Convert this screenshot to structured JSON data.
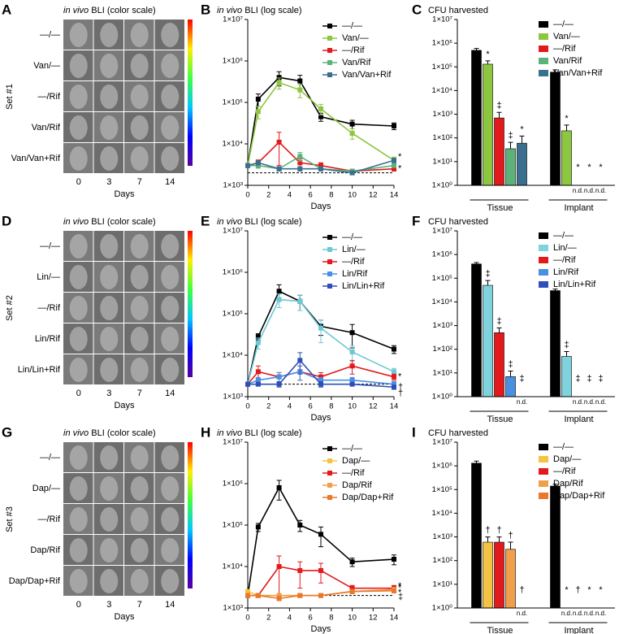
{
  "image_panels": [
    {
      "letter": "A",
      "title_em": "in vivo",
      "title": "BLI (color scale)",
      "set": "Set #1",
      "rows": [
        "—/—",
        "Van/—",
        "—/Rif",
        "Van/Rif",
        "Van/Van+Rif"
      ],
      "days": [
        "0",
        "3",
        "7",
        "14"
      ],
      "xlabel": "Days"
    },
    {
      "letter": "D",
      "title_em": "in vivo",
      "title": "BLI (color scale)",
      "set": "Set #2",
      "rows": [
        "—/—",
        "Lin/—",
        "—/Rif",
        "Lin/Rif",
        "Lin/Lin+Rif"
      ],
      "days": [
        "0",
        "3",
        "7",
        "14"
      ],
      "xlabel": "Days"
    },
    {
      "letter": "G",
      "title_em": "in vivo",
      "title": "BLI (color scale)",
      "set": "Set #3",
      "rows": [
        "—/—",
        "Dap/—",
        "—/Rif",
        "Dap/Rif",
        "Dap/Dap+Rif"
      ],
      "days": [
        "0",
        "3",
        "7",
        "14"
      ],
      "xlabel": "Days"
    }
  ],
  "chart_data": [
    {
      "type": "line",
      "letter": "B",
      "title_em": "in vivo",
      "title": "BLI (log scale)",
      "xlabel": "Days",
      "log_y": true,
      "x": [
        0,
        1,
        3,
        5,
        7,
        10,
        14
      ],
      "xlim": [
        0,
        14
      ],
      "xticks": [
        0,
        2,
        4,
        6,
        8,
        10,
        12,
        14
      ],
      "ylim": [
        1000,
        10000000
      ],
      "yticks": [
        {
          "value": 1000,
          "label": "1×10³"
        },
        {
          "value": 10000,
          "label": "1×10⁴"
        },
        {
          "value": 100000,
          "label": "1×10⁵"
        },
        {
          "value": 1000000,
          "label": "1×10⁶"
        },
        {
          "value": 10000000,
          "label": "1×10⁷"
        }
      ],
      "reference_line": 2000,
      "series": [
        {
          "name": "—/—",
          "color": "#000000",
          "values": [
            3000,
            120000,
            400000,
            330000,
            45000,
            30000,
            27000
          ],
          "errors": [
            300,
            40000,
            150000,
            120000,
            10000,
            7000,
            5000
          ]
        },
        {
          "name": "Van/—",
          "color": "#8dc63f",
          "values": [
            3000,
            60000,
            300000,
            200000,
            70000,
            18000,
            4000
          ],
          "errors": [
            300,
            20000,
            90000,
            70000,
            20000,
            5000,
            800
          ],
          "end_mark": "*"
        },
        {
          "name": "—/Rif",
          "color": "#e31a1c",
          "values": [
            3000,
            3500,
            11000,
            3500,
            3000,
            2200,
            2500
          ],
          "errors": [
            300,
            600,
            8000,
            800,
            500,
            200,
            300
          ],
          "end_mark": "*"
        },
        {
          "name": "Van/Rif",
          "color": "#5bb37a",
          "values": [
            3000,
            3000,
            2500,
            5000,
            2500,
            2200,
            3000
          ],
          "errors": [
            300,
            400,
            300,
            1200,
            300,
            200,
            300
          ]
        },
        {
          "name": "Van/Van+Rif",
          "color": "#3a6f8f",
          "values": [
            3000,
            3500,
            2500,
            2500,
            2500,
            2000,
            4000
          ],
          "errors": [
            300,
            400,
            300,
            300,
            300,
            200,
            500
          ]
        }
      ]
    },
    {
      "type": "bar",
      "letter": "C",
      "title": "CFU harvested",
      "log_y": true,
      "categories": [
        "Tissue",
        "Implant"
      ],
      "nd_label": "n.d.",
      "ylim": [
        1,
        10000000
      ],
      "yticks": [
        {
          "value": 1,
          "label": "1×10⁰"
        },
        {
          "value": 10,
          "label": "1×10¹"
        },
        {
          "value": 100,
          "label": "1×10²"
        },
        {
          "value": 1000,
          "label": "1×10³"
        },
        {
          "value": 10000,
          "label": "1×10⁴"
        },
        {
          "value": 100000,
          "label": "1×10⁵"
        },
        {
          "value": 1000000,
          "label": "1×10⁶"
        },
        {
          "value": 10000000,
          "label": "1×10⁷"
        }
      ],
      "series": [
        {
          "name": "—/—",
          "color": "#000000",
          "values": [
            500000,
            60000
          ],
          "errors": [
            100000,
            15000
          ],
          "marks": [
            null,
            null
          ]
        },
        {
          "name": "Van/—",
          "color": "#8dc63f",
          "values": [
            130000,
            200
          ],
          "errors": [
            50000,
            150
          ],
          "marks": [
            "*",
            "*"
          ]
        },
        {
          "name": "—/Rif",
          "color": "#e31a1c",
          "values": [
            700,
            null
          ],
          "errors": [
            500,
            null
          ],
          "marks": [
            "‡",
            "*"
          ]
        },
        {
          "name": "Van/Rif",
          "color": "#5bb37a",
          "values": [
            35,
            null
          ],
          "errors": [
            30,
            null
          ],
          "marks": [
            "‡",
            "*"
          ]
        },
        {
          "name": "Van/Van+Rif",
          "color": "#3a6f8f",
          "values": [
            60,
            null
          ],
          "errors": [
            60,
            null
          ],
          "marks": [
            "*",
            "*"
          ]
        }
      ]
    },
    {
      "type": "line",
      "letter": "E",
      "title_em": "in vivo",
      "title": "BLI (log scale)",
      "xlabel": "Days",
      "log_y": true,
      "x": [
        0,
        1,
        3,
        5,
        7,
        10,
        14
      ],
      "xlim": [
        0,
        14
      ],
      "xticks": [
        0,
        2,
        4,
        6,
        8,
        10,
        12,
        14
      ],
      "ylim": [
        1000,
        10000000
      ],
      "yticks": [
        {
          "value": 1000,
          "label": "1×10³"
        },
        {
          "value": 10000,
          "label": "1×10⁴"
        },
        {
          "value": 100000,
          "label": "1×10⁵"
        },
        {
          "value": 1000000,
          "label": "1×10⁶"
        },
        {
          "value": 10000000,
          "label": "1×10⁷"
        }
      ],
      "reference_line": 2000,
      "series": [
        {
          "name": "—/—",
          "color": "#000000",
          "values": [
            2000,
            28000,
            350000,
            200000,
            50000,
            35000,
            14000
          ],
          "errors": [
            200,
            5000,
            150000,
            80000,
            20000,
            20000,
            3000
          ]
        },
        {
          "name": "Lin/—",
          "color": "#6cc8d4",
          "values": [
            2000,
            20000,
            220000,
            200000,
            45000,
            12000,
            4000
          ],
          "errors": [
            200,
            6000,
            80000,
            80000,
            25000,
            5000,
            800
          ]
        },
        {
          "name": "—/Rif",
          "color": "#e31a1c",
          "values": [
            2000,
            4000,
            3000,
            4000,
            3000,
            5500,
            3000
          ],
          "errors": [
            200,
            1500,
            800,
            1500,
            800,
            2000,
            500
          ],
          "end_mark": "*"
        },
        {
          "name": "Lin/Rif",
          "color": "#4a90e2",
          "values": [
            2000,
            2500,
            3000,
            4000,
            2500,
            2500,
            2000
          ],
          "errors": [
            200,
            400,
            800,
            1500,
            400,
            400,
            300
          ],
          "end_mark": "†"
        },
        {
          "name": "Lin/Lin+Rif",
          "color": "#2e4fb8",
          "values": [
            2000,
            2000,
            2000,
            7500,
            2000,
            2000,
            1700
          ],
          "errors": [
            200,
            200,
            300,
            4000,
            300,
            200,
            200
          ],
          "end_mark": "†"
        }
      ]
    },
    {
      "type": "bar",
      "letter": "F",
      "title": "CFU harvested",
      "log_y": true,
      "categories": [
        "Tissue",
        "Implant"
      ],
      "nd_label": "n.d.",
      "ylim": [
        1,
        10000000
      ],
      "yticks": [
        {
          "value": 1,
          "label": "1×10⁰"
        },
        {
          "value": 10,
          "label": "1×10¹"
        },
        {
          "value": 100,
          "label": "1×10²"
        },
        {
          "value": 1000,
          "label": "1×10³"
        },
        {
          "value": 10000,
          "label": "1×10⁴"
        },
        {
          "value": 100000,
          "label": "1×10⁵"
        },
        {
          "value": 1000000,
          "label": "1×10⁶"
        },
        {
          "value": 10000000,
          "label": "1×10⁷"
        }
      ],
      "series": [
        {
          "name": "—/—",
          "color": "#000000",
          "values": [
            400000,
            30000
          ],
          "errors": [
            60000,
            5000
          ],
          "marks": [
            null,
            null
          ]
        },
        {
          "name": "Lin/—",
          "color": "#7fd3dc",
          "values": [
            50000,
            50
          ],
          "errors": [
            30000,
            30
          ],
          "marks": [
            "‡",
            "‡"
          ]
        },
        {
          "name": "—/Rif",
          "color": "#e31a1c",
          "values": [
            500,
            null
          ],
          "errors": [
            300,
            null
          ],
          "marks": [
            "‡",
            "‡"
          ]
        },
        {
          "name": "Lin/Rif",
          "color": "#4a8fe0",
          "values": [
            7,
            null
          ],
          "errors": [
            5,
            null
          ],
          "marks": [
            "‡",
            "‡"
          ]
        },
        {
          "name": "Lin/Lin+Rif",
          "color": "#2e4fb8",
          "values": [
            null,
            null
          ],
          "errors": [
            null,
            null
          ],
          "marks": [
            "‡",
            "‡"
          ]
        }
      ]
    },
    {
      "type": "line",
      "letter": "H",
      "title_em": "in vivo",
      "title": "BLI (log scale)",
      "xlabel": "Days",
      "log_y": true,
      "x": [
        0,
        1,
        3,
        5,
        7,
        10,
        14
      ],
      "xlim": [
        0,
        14
      ],
      "xticks": [
        0,
        2,
        4,
        6,
        8,
        10,
        12,
        14
      ],
      "ylim": [
        1000,
        10000000
      ],
      "yticks": [
        {
          "value": 1000,
          "label": "1×10³"
        },
        {
          "value": 10000,
          "label": "1×10⁴"
        },
        {
          "value": 100000,
          "label": "1×10⁵"
        },
        {
          "value": 1000000,
          "label": "1×10⁶"
        },
        {
          "value": 10000000,
          "label": "1×10⁷"
        }
      ],
      "reference_line": 2000,
      "series": [
        {
          "name": "—/—",
          "color": "#000000",
          "values": [
            2000,
            90000,
            800000,
            100000,
            60000,
            13000,
            15000
          ],
          "errors": [
            200,
            20000,
            400000,
            30000,
            30000,
            3000,
            4000
          ]
        },
        {
          "name": "Dap/—",
          "color": "#f5c242",
          "values": [
            2500,
            2000,
            2000,
            2000,
            2000,
            2500,
            2800
          ],
          "errors": [
            300,
            200,
            200,
            200,
            200,
            300,
            300
          ],
          "end_mark": "*"
        },
        {
          "name": "—/Rif",
          "color": "#e31a1c",
          "values": [
            2000,
            2000,
            10000,
            8000,
            8000,
            3000,
            3000
          ],
          "errors": [
            200,
            200,
            8000,
            5000,
            4000,
            500,
            500
          ],
          "end_mark": "*"
        },
        {
          "name": "Dap/Rif",
          "color": "#f0a04b",
          "values": [
            2000,
            2000,
            2000,
            2000,
            2000,
            2500,
            2800
          ],
          "errors": [
            200,
            200,
            200,
            200,
            200,
            300,
            300
          ],
          "end_mark": "*"
        },
        {
          "name": "Dap/Dap+Rif",
          "color": "#e8782e",
          "values": [
            2000,
            2000,
            1700,
            2000,
            2000,
            2500,
            2600
          ],
          "errors": [
            200,
            200,
            200,
            200,
            200,
            300,
            300
          ],
          "end_mark": "‡"
        }
      ]
    },
    {
      "type": "bar",
      "letter": "I",
      "title": "CFU harvested",
      "log_y": true,
      "categories": [
        "Tissue",
        "Implant"
      ],
      "nd_label": "n.d.",
      "ylim": [
        1,
        10000000
      ],
      "yticks": [
        {
          "value": 1,
          "label": "1×10⁰"
        },
        {
          "value": 10,
          "label": "1×10¹"
        },
        {
          "value": 100,
          "label": "1×10²"
        },
        {
          "value": 1000,
          "label": "1×10³"
        },
        {
          "value": 10000,
          "label": "1×10⁴"
        },
        {
          "value": 100000,
          "label": "1×10⁵"
        },
        {
          "value": 1000000,
          "label": "1×10⁶"
        },
        {
          "value": 10000000,
          "label": "1×10⁷"
        }
      ],
      "series": [
        {
          "name": "—/—",
          "color": "#000000",
          "values": [
            1300000,
            140000
          ],
          "errors": [
            300000,
            30000
          ],
          "marks": [
            null,
            null
          ]
        },
        {
          "name": "Dap/—",
          "color": "#f5c242",
          "values": [
            600,
            null
          ],
          "errors": [
            400,
            null
          ],
          "marks": [
            "†",
            "*"
          ]
        },
        {
          "name": "—/Rif",
          "color": "#e31a1c",
          "values": [
            600,
            null
          ],
          "errors": [
            400,
            null
          ],
          "marks": [
            "†",
            "†"
          ]
        },
        {
          "name": "Dap/Rif",
          "color": "#f0a04b",
          "values": [
            300,
            null
          ],
          "errors": [
            300,
            null
          ],
          "marks": [
            "†",
            "*"
          ]
        },
        {
          "name": "Dap/Dap+Rif",
          "color": "#e8782e",
          "values": [
            null,
            null
          ],
          "errors": [
            null,
            null
          ],
          "marks": [
            "†",
            "*"
          ]
        }
      ]
    }
  ]
}
